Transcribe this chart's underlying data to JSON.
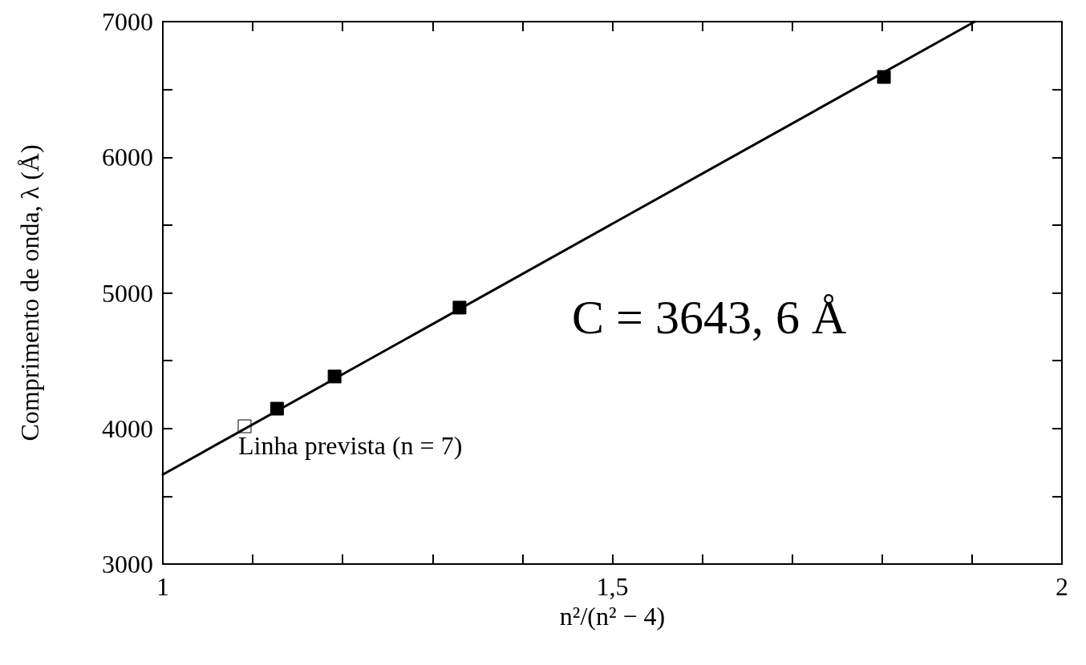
{
  "chart_data": {
    "type": "scatter",
    "xlabel": "n²/(n² − 4)",
    "ylabel": "Comprimento de onda, λ (Å)",
    "xlim": [
      1,
      2
    ],
    "ylim": [
      3000,
      7000
    ],
    "xticks": [
      1,
      {
        "value": 1.1,
        "label": null
      },
      {
        "value": 1.2,
        "label": null
      },
      {
        "value": 1.3,
        "label": null
      },
      {
        "value": 1.4,
        "label": null
      },
      {
        "value": 1.5,
        "label": "1,5"
      },
      {
        "value": 1.6,
        "label": null
      },
      {
        "value": 1.7,
        "label": null
      },
      {
        "value": 1.8,
        "label": null
      },
      {
        "value": 1.9,
        "label": null
      },
      2
    ],
    "yticks": [
      3000,
      {
        "value": 3500,
        "label": null
      },
      4000,
      {
        "value": 4500,
        "label": null
      },
      5000,
      {
        "value": 5500,
        "label": null
      },
      6000,
      {
        "value": 6500,
        "label": null
      },
      7000
    ],
    "grid": false,
    "marker": "square",
    "series": [
      {
        "type": "line",
        "color": "#000000",
        "marker": "none",
        "x": [
          1,
          1.903
        ],
        "values": [
          3660,
          7000
        ]
      },
      {
        "color": "#000000",
        "x": [
          1.127,
          1.191,
          1.33,
          1.802
        ],
        "values": [
          4146,
          4383,
          4891,
          6592
        ]
      },
      {
        "color": "#ffffff",
        "x": [
          1.091
        ],
        "values": [
          4016
        ]
      }
    ],
    "annotations": [
      "C = 3643, 6 Å",
      {
        "text": "Linha prevista (n = 7)",
        "x": 1.091,
        "y": 4016
      }
    ]
  }
}
